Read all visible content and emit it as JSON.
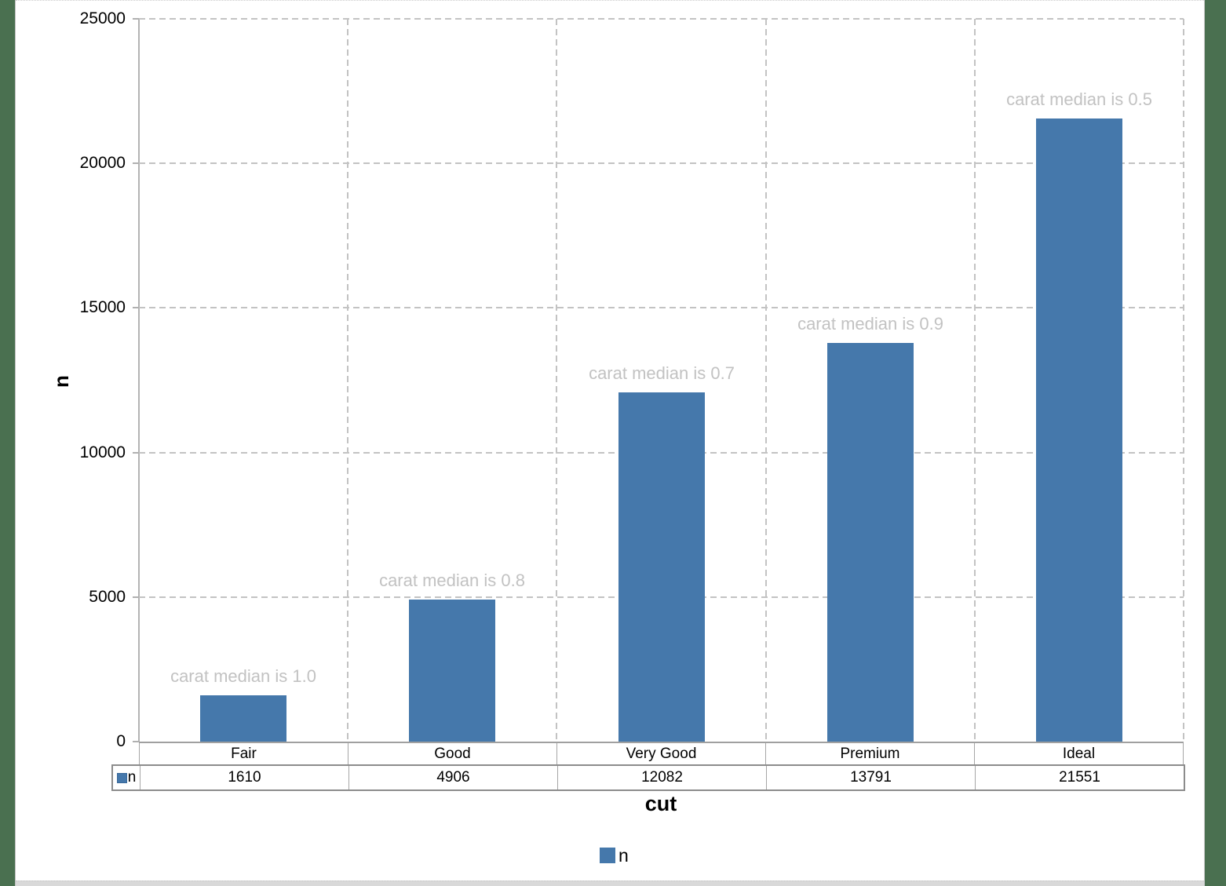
{
  "frame": {
    "side_color": "#4a7050",
    "bottom_strip_color": "#d9d9d9"
  },
  "chart_data": {
    "type": "bar",
    "title": "",
    "categories": [
      "Fair",
      "Good",
      "Very Good",
      "Premium",
      "Ideal"
    ],
    "series": [
      {
        "name": "n",
        "values": [
          1610,
          4906,
          12082,
          13791,
          21551
        ]
      }
    ],
    "annotations": [
      "carat median is 1.0",
      "carat median is 0.8",
      "carat median is 0.7",
      "carat median is 0.9",
      "carat median is 0.5"
    ],
    "xlabel": "cut",
    "ylabel": "n",
    "ylim": [
      0,
      25000
    ],
    "yticks": [
      0,
      5000,
      10000,
      15000,
      20000,
      25000
    ],
    "grid": "dashed horizontal and vertical gridlines",
    "legend_position": "bottom",
    "data_table_shown": true,
    "bar_color": "#4578ab",
    "annotation_color": "#c2c2c2"
  },
  "legend": {
    "label": "n"
  }
}
